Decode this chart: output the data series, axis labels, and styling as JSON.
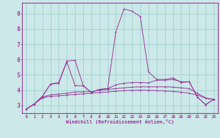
{
  "xlabel": "Windchill (Refroidissement éolien,°C)",
  "bg_color": "#cce8e8",
  "grid_color": "#99cccc",
  "line_color": "#993399",
  "x": [
    0,
    1,
    2,
    3,
    4,
    5,
    6,
    7,
    8,
    9,
    10,
    11,
    12,
    13,
    14,
    15,
    16,
    17,
    18,
    19,
    20,
    21,
    22,
    23
  ],
  "line1": [
    2.75,
    3.1,
    3.6,
    4.4,
    4.5,
    5.9,
    5.95,
    4.3,
    3.85,
    4.05,
    4.1,
    7.8,
    9.3,
    9.15,
    8.8,
    5.2,
    4.7,
    4.7,
    4.8,
    4.5,
    4.55,
    3.55,
    3.05,
    3.4
  ],
  "line2": [
    2.75,
    3.1,
    3.6,
    4.4,
    4.45,
    5.85,
    4.3,
    4.28,
    3.85,
    4.05,
    4.1,
    4.35,
    4.45,
    4.5,
    4.5,
    4.48,
    4.65,
    4.65,
    4.7,
    4.55,
    4.55,
    3.55,
    3.05,
    3.4
  ],
  "line3": [
    2.75,
    3.1,
    3.55,
    3.7,
    3.75,
    3.8,
    3.88,
    3.9,
    3.9,
    4.0,
    4.05,
    4.1,
    4.15,
    4.2,
    4.22,
    4.22,
    4.22,
    4.22,
    4.2,
    4.15,
    4.1,
    3.8,
    3.5,
    3.4
  ],
  "line4": [
    2.75,
    3.1,
    3.5,
    3.6,
    3.63,
    3.68,
    3.73,
    3.76,
    3.8,
    3.85,
    3.88,
    3.93,
    3.97,
    3.99,
    4.0,
    3.99,
    3.97,
    3.95,
    3.92,
    3.87,
    3.8,
    3.68,
    3.48,
    3.38
  ],
  "ylim": [
    2.5,
    9.7
  ],
  "xlim": [
    -0.5,
    23.5
  ],
  "yticks": [
    3,
    4,
    5,
    6,
    7,
    8,
    9
  ]
}
